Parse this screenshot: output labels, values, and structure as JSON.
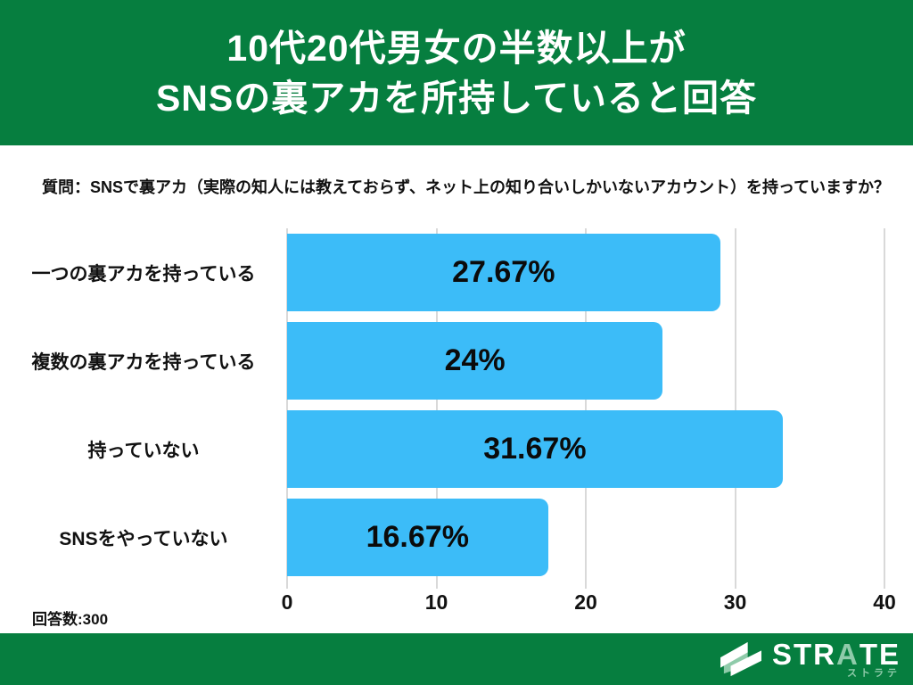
{
  "header": {
    "title_line1": "10代20代男女の半数以上が",
    "title_line2": "SNSの裏アカを所持していると回答"
  },
  "question": "質問：SNSで裏アカ（実際の知人には教えておらず、ネット上の知り合いしかいないアカウント）を持っていますか？",
  "chart_data": {
    "type": "bar",
    "orientation": "horizontal",
    "categories": [
      "一つの裏アカを持っている",
      "複数の裏アカを持っている",
      "持っていない",
      "SNSをやっていない"
    ],
    "values": [
      27.67,
      24,
      31.67,
      16.67
    ],
    "value_labels": [
      "27.67%",
      "24%",
      "31.67%",
      "16.67%"
    ],
    "xlim": [
      0,
      40
    ],
    "x_ticks": [
      0,
      10,
      20,
      30,
      40
    ],
    "grid": true,
    "legend": "none",
    "title": "",
    "xlabel": "",
    "ylabel": ""
  },
  "footer_note": "回答数:300",
  "logo": {
    "letters": [
      "S",
      "T",
      "R",
      "A",
      "T",
      "E"
    ],
    "mint_letter_index": 3,
    "subtext": "ストラテ"
  },
  "colors": {
    "green": "#067e3f",
    "bar": "#3cbcf8",
    "grid": "#d9d9d9",
    "mint": "#8fcbaa",
    "title_text": "#ffffff",
    "body_text": "#111111"
  }
}
